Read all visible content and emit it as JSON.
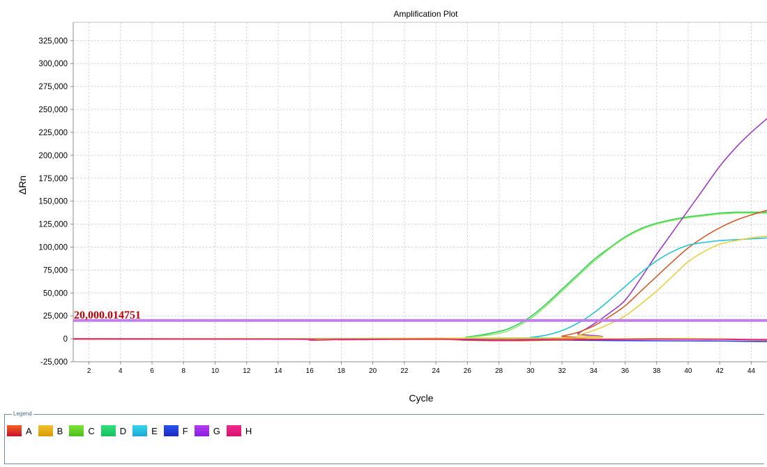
{
  "chart_data": {
    "type": "line",
    "title": "Amplification Plot",
    "xlabel": "Cycle",
    "ylabel": "ΔRn",
    "xlim": [
      1,
      45
    ],
    "ylim": [
      -25000,
      345000
    ],
    "x_ticks": [
      2,
      4,
      6,
      8,
      10,
      12,
      14,
      16,
      18,
      20,
      22,
      24,
      26,
      28,
      30,
      32,
      34,
      36,
      38,
      40,
      42,
      44
    ],
    "y_ticks": [
      -25000,
      0,
      25000,
      50000,
      75000,
      100000,
      125000,
      150000,
      175000,
      200000,
      225000,
      250000,
      275000,
      300000,
      325000
    ],
    "y_tick_labels": [
      "-25,000",
      "0",
      "25,000",
      "50,000",
      "75,000",
      "100,000",
      "125,000",
      "150,000",
      "175,000",
      "200,000",
      "225,000",
      "250,000",
      "275,000",
      "300,000",
      "325,000"
    ],
    "grid": true,
    "threshold": {
      "value": 20000.014751,
      "label": "20,000.014751",
      "color": "#c080e8",
      "label_color": "#cc0000"
    },
    "series": [
      {
        "color": "#2ecc5a",
        "x": [
          1,
          24,
          26,
          28,
          29,
          30,
          31,
          32,
          33,
          34,
          35,
          36,
          37,
          38,
          39,
          40,
          41,
          42,
          43,
          44,
          45
        ],
        "y": [
          0,
          0,
          2000,
          8000,
          14000,
          24000,
          38000,
          54000,
          70000,
          86000,
          99000,
          111000,
          120000,
          126000,
          130000,
          133000,
          135000,
          137000,
          138000,
          138000,
          138000
        ]
      },
      {
        "color": "#8eea6a",
        "x": [
          1,
          24,
          26,
          28,
          29,
          30,
          31,
          32,
          33,
          34,
          35,
          36,
          37,
          38,
          39,
          40,
          41,
          42,
          43,
          44,
          45
        ],
        "y": [
          0,
          0,
          1500,
          6000,
          12000,
          22000,
          36000,
          52000,
          68000,
          84000,
          98000,
          110000,
          119000,
          125000,
          129000,
          132000,
          134000,
          136000,
          137000,
          137000,
          137000
        ]
      },
      {
        "color": "#9a3cc4",
        "x": [
          1,
          32,
          33,
          34,
          35,
          36,
          37,
          38,
          39,
          40,
          41,
          42,
          43,
          44,
          45
        ],
        "y": [
          -500,
          1000,
          6000,
          16000,
          28000,
          42000,
          66000,
          92000,
          116000,
          140000,
          164000,
          188000,
          208000,
          225000,
          240000
        ]
      },
      {
        "color": "#d35a2a",
        "x": [
          1,
          31,
          32,
          33,
          34,
          35,
          36,
          37,
          38,
          39,
          40,
          41,
          42,
          43,
          44,
          45
        ],
        "y": [
          -500,
          0,
          3000,
          7000,
          14000,
          24000,
          36000,
          52000,
          68000,
          84000,
          99000,
          111000,
          121000,
          129000,
          135000,
          140000
        ]
      },
      {
        "color": "#22c2d4",
        "x": [
          1,
          29,
          30,
          31,
          32,
          33,
          34,
          35,
          36,
          37,
          38,
          39,
          40,
          41,
          42,
          43,
          44,
          45
        ],
        "y": [
          0,
          500,
          1500,
          4000,
          9000,
          17000,
          28000,
          42000,
          57000,
          72000,
          85000,
          95000,
          102000,
          105000,
          107000,
          108000,
          109000,
          110000
        ]
      },
      {
        "color": "#e8d040",
        "x": [
          1,
          32,
          33,
          34,
          35,
          36,
          37,
          38,
          39,
          40,
          41,
          42,
          43,
          44,
          45
        ],
        "y": [
          0,
          1000,
          4000,
          9000,
          16000,
          25000,
          38000,
          52000,
          68000,
          84000,
          95000,
          103000,
          107000,
          110000,
          112000
        ]
      },
      {
        "color": "#2a44d8",
        "x": [
          1,
          26,
          28,
          30,
          32,
          34,
          36,
          38,
          40,
          42,
          44,
          45
        ],
        "y": [
          0,
          -500,
          -1000,
          -1200,
          -1500,
          -1700,
          -2000,
          -2200,
          -2300,
          -2400,
          -2800,
          -3000
        ]
      },
      {
        "color": "#c84020",
        "x": [
          1,
          16,
          18,
          20,
          24,
          26,
          28,
          30,
          32,
          34,
          36,
          38,
          40,
          42,
          44,
          45
        ],
        "y": [
          0,
          -500,
          -1000,
          -800,
          -500,
          -1500,
          -2000,
          -1800,
          -1200,
          -800,
          -600,
          -500,
          -400,
          -600,
          -1200,
          -1500
        ]
      },
      {
        "color": "#e0b000",
        "x": [
          1,
          30,
          32,
          34,
          36,
          38,
          40,
          42,
          44,
          45
        ],
        "y": [
          0,
          -1000,
          -500,
          -300,
          0,
          200,
          100,
          -200,
          -800,
          -1000
        ]
      },
      {
        "color": "#e81e8c",
        "x": [
          1,
          15,
          16,
          17,
          18,
          20,
          22,
          24,
          26,
          28,
          30,
          32,
          34,
          36,
          38,
          40,
          42,
          44,
          45
        ],
        "y": [
          0,
          -500,
          -1500,
          -1200,
          -800,
          -500,
          -300,
          -200,
          -800,
          -1500,
          -1000,
          -600,
          -400,
          -500,
          -300,
          -500,
          -400,
          -700,
          -800
        ]
      }
    ]
  },
  "legend": {
    "title": "Legend",
    "items": [
      {
        "label": "A",
        "color_top": "#f4621f",
        "color_bottom": "#c8102e"
      },
      {
        "label": "B",
        "color_top": "#f2c12e",
        "color_bottom": "#d99a00"
      },
      {
        "label": "C",
        "color_top": "#7ee23a",
        "color_bottom": "#4cbf1a"
      },
      {
        "label": "D",
        "color_top": "#32e07a",
        "color_bottom": "#14c060"
      },
      {
        "label": "E",
        "color_top": "#38d6e8",
        "color_bottom": "#18a6d6"
      },
      {
        "label": "F",
        "color_top": "#2a52ee",
        "color_bottom": "#1a2ac0"
      },
      {
        "label": "G",
        "color_top": "#b43af0",
        "color_bottom": "#8a1ee0"
      },
      {
        "label": "H",
        "color_top": "#f0288c",
        "color_bottom": "#d81070"
      }
    ]
  }
}
